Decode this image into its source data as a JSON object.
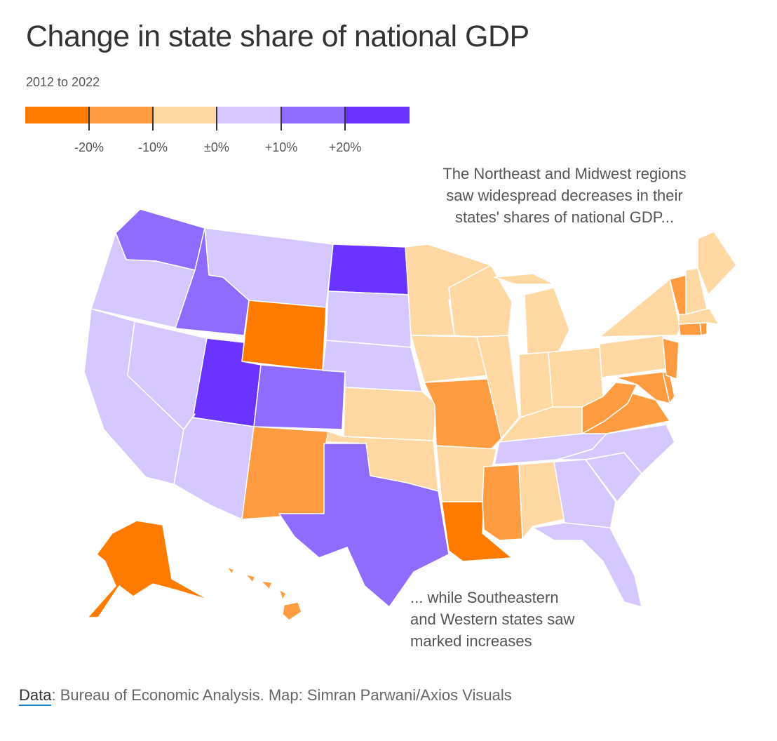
{
  "title": "Change in state share of national GDP",
  "subtitle": "2012 to 2022",
  "legend": {
    "swatches": [
      {
        "color": "#FF7B00"
      },
      {
        "color": "#FF9B40"
      },
      {
        "color": "#FFD8A3"
      },
      {
        "color": "#D6C8FF"
      },
      {
        "color": "#8F6BFF"
      },
      {
        "color": "#6A33FF"
      }
    ],
    "ticks": [
      {
        "label": "-20%"
      },
      {
        "label": "-10%"
      },
      {
        "label": "±0%"
      },
      {
        "label": "+10%"
      },
      {
        "label": "+20%"
      }
    ]
  },
  "annotations": {
    "northeast": [
      "The Northeast and Midwest regions",
      "saw widespread decreases in their",
      "states' shares of national GDP..."
    ],
    "southeast": [
      "... while Southeastern",
      "and Western states saw",
      "marked increases"
    ]
  },
  "source": {
    "label": "Data",
    "text": ": Bureau of Economic Analysis. Map: Simran Parwani/Axios Visuals"
  },
  "map_data": {
    "type": "choropleth",
    "bins": [
      "< -20%",
      "-20% to -10%",
      "-10% to ±0%",
      "±0% to +10%",
      "+10% to +20%",
      "> +20%"
    ],
    "states": {
      "WA": 4,
      "OR": 3,
      "CA": 3,
      "NV": 3,
      "ID": 4,
      "MT": 3,
      "WY": 0,
      "UT": 5,
      "AZ": 3,
      "CO": 4,
      "NM": 1,
      "ND": 5,
      "SD": 3,
      "NE": 3,
      "KS": 2,
      "OK": 2,
      "TX": 4,
      "MN": 2,
      "IA": 2,
      "MO": 1,
      "AR": 2,
      "LA": 0,
      "WI": 2,
      "IL": 2,
      "MI": 2,
      "IN": 2,
      "OH": 2,
      "KY": 2,
      "TN": 3,
      "MS": 1,
      "AL": 2,
      "GA": 3,
      "FL": 3,
      "SC": 3,
      "NC": 3,
      "VA": 1,
      "WV": 1,
      "MD": 1,
      "DE": 1,
      "PA": 2,
      "NJ": 1,
      "NY": 2,
      "CT": 1,
      "RI": 1,
      "MA": 2,
      "VT": 1,
      "NH": 2,
      "ME": 2,
      "AK": 0,
      "HI": 1
    }
  }
}
